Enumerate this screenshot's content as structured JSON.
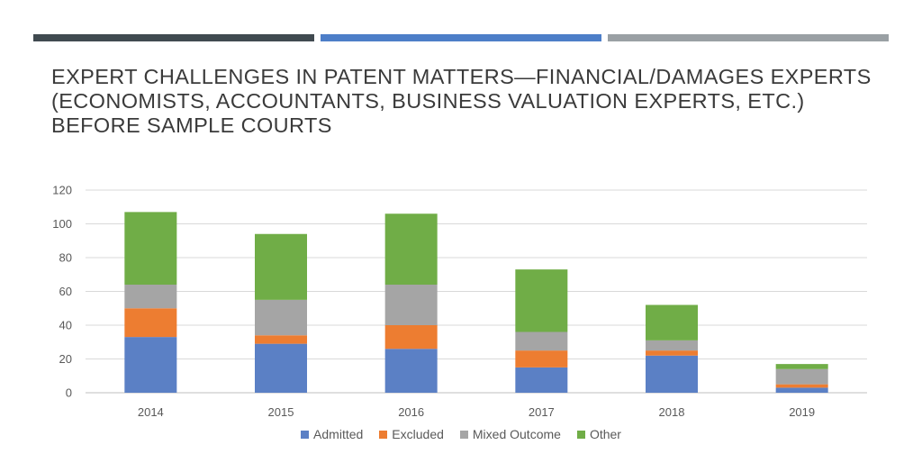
{
  "colors": {
    "accent_bars": [
      "#404a50",
      "#4d7ec8",
      "#9aa0a4"
    ],
    "series": [
      "#5b80c5",
      "#ed7d31",
      "#a5a5a5",
      "#70ad47"
    ],
    "grid": "#d9d9d9",
    "axis": "#bfbfbf"
  },
  "title_lines": [
    "EXPERT CHALLENGES IN PATENT MATTERS—FINANCIAL/DAMAGES EXPERTS",
    "(ECONOMISTS, ACCOUNTANTS, BUSINESS VALUATION EXPERTS, ETC.)",
    "BEFORE SAMPLE COURTS"
  ],
  "chart_data": {
    "type": "bar",
    "stacked": true,
    "categories": [
      "2014",
      "2015",
      "2016",
      "2017",
      "2018",
      "2019"
    ],
    "series": [
      {
        "name": "Admitted",
        "values": [
          33,
          29,
          26,
          15,
          22,
          3
        ]
      },
      {
        "name": "Excluded",
        "values": [
          17,
          5,
          14,
          10,
          3,
          2
        ]
      },
      {
        "name": "Mixed Outcome",
        "values": [
          14,
          21,
          24,
          11,
          6,
          9
        ]
      },
      {
        "name": "Other",
        "values": [
          43,
          39,
          42,
          37,
          21,
          3
        ]
      }
    ],
    "ylim": [
      0,
      120
    ],
    "yticks": [
      "0",
      "20",
      "40",
      "60",
      "80",
      "100",
      "120"
    ],
    "grid": true,
    "legend": "bottom"
  }
}
